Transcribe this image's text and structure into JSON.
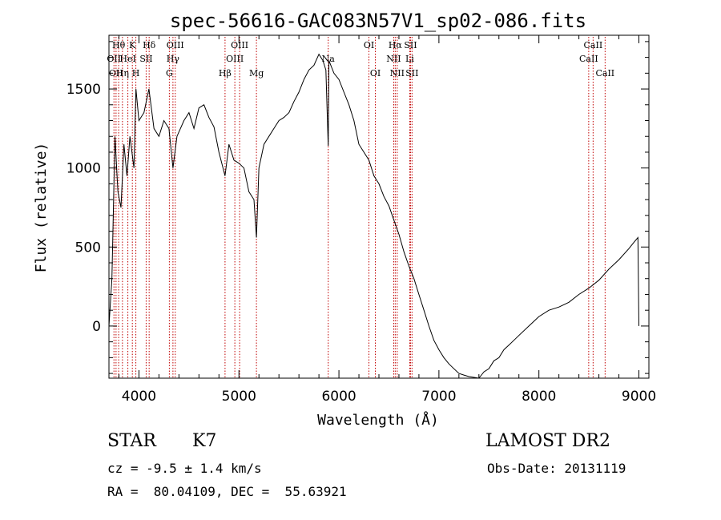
{
  "chart_data": {
    "type": "line",
    "title": "spec-56616-GAC083N57V1_sp02-086.fits",
    "xlabel": "Wavelength (Å)",
    "ylabel": "Flux (relative)",
    "xlim": [
      3700,
      9100
    ],
    "ylim": [
      -330,
      1840
    ],
    "xticks": [
      4000,
      5000,
      6000,
      7000,
      8000,
      9000
    ],
    "yticks": [
      0,
      500,
      1000,
      1500
    ],
    "grid": false,
    "series": [
      {
        "x": [
          3700,
          3730,
          3760,
          3790,
          3820,
          3850,
          3880,
          3910,
          3950,
          3970,
          4000,
          4050,
          4100,
          4150,
          4200,
          4250,
          4300,
          4340,
          4380,
          4450,
          4500,
          4550,
          4600,
          4650,
          4700,
          4750,
          4800,
          4861,
          4900,
          4950,
          5000,
          5050,
          5100,
          5150,
          5175,
          5200,
          5250,
          5300,
          5350,
          5400,
          5450,
          5500,
          5550,
          5600,
          5650,
          5700,
          5750,
          5800,
          5840,
          5870,
          5893,
          5900,
          5950,
          6000,
          6050,
          6100,
          6150,
          6200,
          6250,
          6300,
          6350,
          6400,
          6450,
          6500,
          6550,
          6600,
          6650,
          6700,
          6750,
          6800,
          6850,
          6900,
          6950,
          7000,
          7050,
          7100,
          7150,
          7200,
          7250,
          7300,
          7350,
          7400,
          7450,
          7500,
          7550,
          7600,
          7650,
          7700,
          7750,
          7800,
          7900,
          8000,
          8100,
          8200,
          8300,
          8400,
          8500,
          8600,
          8700,
          8800,
          8900,
          8950,
          8990,
          9000
        ],
        "values": [
          0,
          300,
          1200,
          850,
          750,
          1150,
          950,
          1200,
          1000,
          1500,
          1300,
          1350,
          1500,
          1250,
          1200,
          1300,
          1250,
          1000,
          1200,
          1300,
          1350,
          1250,
          1380,
          1400,
          1320,
          1260,
          1100,
          950,
          1150,
          1050,
          1030,
          1000,
          850,
          800,
          560,
          1000,
          1150,
          1200,
          1250,
          1300,
          1320,
          1350,
          1420,
          1480,
          1560,
          1620,
          1650,
          1720,
          1680,
          1620,
          1140,
          1680,
          1600,
          1560,
          1480,
          1400,
          1300,
          1150,
          1100,
          1050,
          950,
          900,
          820,
          760,
          670,
          580,
          470,
          380,
          300,
          200,
          100,
          0,
          -90,
          -150,
          -200,
          -240,
          -270,
          -300,
          -310,
          -320,
          -325,
          -330,
          -290,
          -270,
          -220,
          -200,
          -150,
          -120,
          -90,
          -60,
          0,
          60,
          100,
          120,
          150,
          200,
          240,
          290,
          360,
          420,
          490,
          530,
          560,
          0
        ],
        "color": "#000000"
      }
    ],
    "lines": [
      {
        "x": 3750,
        "label": "OII",
        "row": 1
      },
      {
        "x": 3771,
        "label": "OII",
        "row": 2
      },
      {
        "x": 3797,
        "label": "Hθ",
        "row": 0
      },
      {
        "x": 3835,
        "label": "Hη",
        "row": 2
      },
      {
        "x": 3889,
        "label": "HeI",
        "row": 1
      },
      {
        "x": 3934,
        "label": "K",
        "row": 0
      },
      {
        "x": 3969,
        "label": "H",
        "row": 2
      },
      {
        "x": 4072,
        "label": "SII",
        "row": 1
      },
      {
        "x": 4102,
        "label": "Hδ",
        "row": 0
      },
      {
        "x": 4304,
        "label": "G",
        "row": 2
      },
      {
        "x": 4340,
        "label": "Hγ",
        "row": 1
      },
      {
        "x": 4363,
        "label": "OIII",
        "row": 0
      },
      {
        "x": 4861,
        "label": "Hβ",
        "row": 2
      },
      {
        "x": 4959,
        "label": "OIII",
        "row": 1
      },
      {
        "x": 5007,
        "label": "OIII",
        "row": 0
      },
      {
        "x": 5175,
        "label": "Mg",
        "row": 2
      },
      {
        "x": 5893,
        "label": "Na",
        "row": 1
      },
      {
        "x": 6300,
        "label": "OI",
        "row": 0
      },
      {
        "x": 6364,
        "label": "OI",
        "row": 2
      },
      {
        "x": 6548,
        "label": "NII",
        "row": 1
      },
      {
        "x": 6563,
        "label": "Hα",
        "row": 0
      },
      {
        "x": 6583,
        "label": "NII",
        "row": 2
      },
      {
        "x": 6708,
        "label": "Li",
        "row": 1
      },
      {
        "x": 6716,
        "label": "SII",
        "row": 0
      },
      {
        "x": 6731,
        "label": "SII",
        "row": 2
      },
      {
        "x": 8498,
        "label": "CaII",
        "row": 1
      },
      {
        "x": 8542,
        "label": "CaII",
        "row": 0
      },
      {
        "x": 8662,
        "label": "CaII",
        "row": 2
      }
    ],
    "line_color": "#c00000"
  },
  "info": {
    "class": "STAR",
    "subclass": "K7",
    "survey": "LAMOST DR2",
    "cz": "cz = -9.5 ± 1.4 km/s",
    "obs_date": "Obs-Date: 20131119",
    "radec": "RA =  80.04109, DEC =  55.63921"
  }
}
